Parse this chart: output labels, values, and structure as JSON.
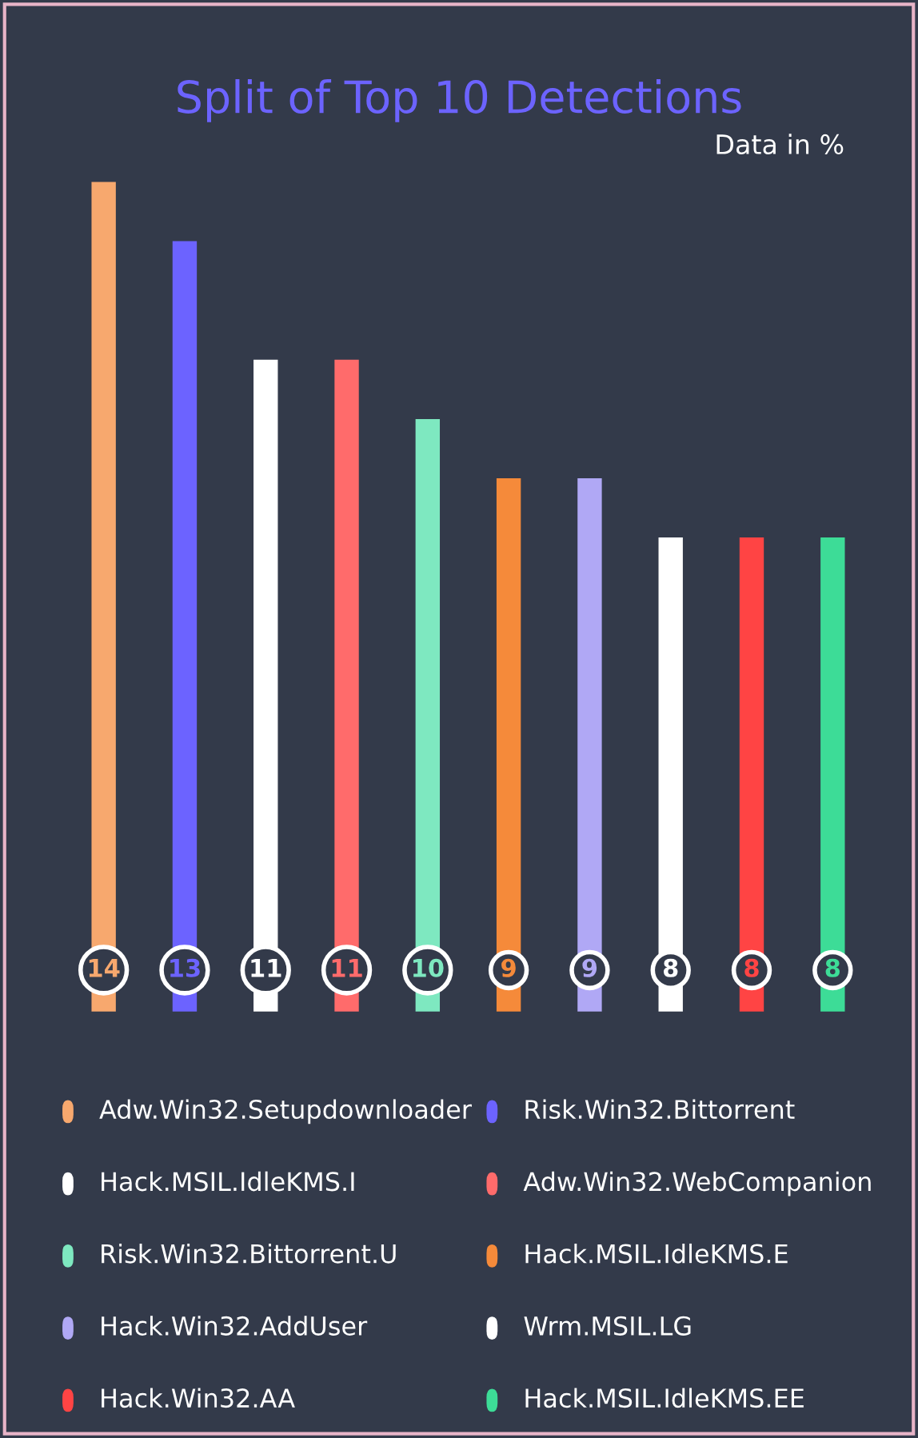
{
  "chart_data": {
    "type": "bar",
    "title": "Split of Top 10 Detections",
    "subtitle": "Data in %",
    "categories": [
      null,
      null,
      null,
      null,
      null,
      null,
      null,
      null,
      null,
      null
    ],
    "values": [
      14,
      13,
      11,
      11,
      10,
      9,
      9,
      8,
      8,
      8
    ],
    "colors": [
      "#f7a86e",
      "#6c63ff",
      "#ffffff",
      "#ff6b6b",
      "#7ee8c0",
      "#f58a3a",
      "#b0a8f5",
      "#ffffff",
      "#ff4444",
      "#3ddc97"
    ],
    "annotations": [
      "Adw.Win32.Setupdownloader",
      "Risk.Win32.Bittorrent",
      "Hack.MSIL.IdleKMS.I",
      "Adw.Win32.WebCompanion",
      "Risk.Win32.Bittorrent.U",
      "Hack.MSIL.IdleKMS.E",
      "Hack.Win32.AddUser",
      "Wrm.MSIL.LG",
      "Hack.Win32.AA",
      "Hack.MSIL.IdleKMS.EE"
    ],
    "data_labels": true
  }
}
